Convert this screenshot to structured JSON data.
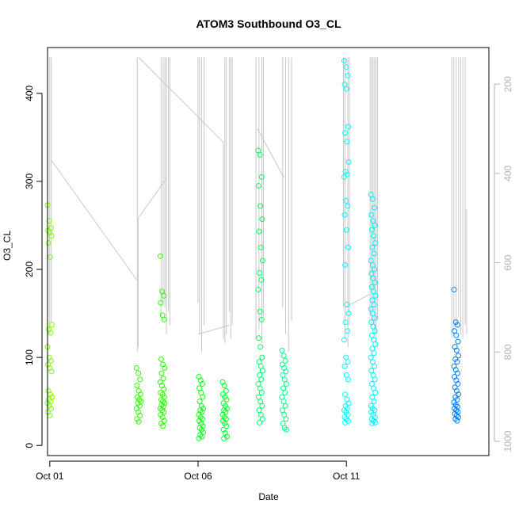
{
  "chart_data": {
    "type": "scatter",
    "title": "ATOM3 Southbound O3_CL",
    "xlabel": "Date",
    "ylabel": "O3_CL",
    "x_ticks": [
      {
        "day": 1,
        "label": "Oct 01"
      },
      {
        "day": 6,
        "label": "Oct 06"
      },
      {
        "day": 11,
        "label": "Oct 11"
      }
    ],
    "xlim": [
      "Oct 01",
      "Oct 15"
    ],
    "ylim": [
      0,
      450
    ],
    "y_ticks": [
      0,
      100,
      200,
      300,
      400
    ],
    "secondary_axis": {
      "side": "right",
      "reversed": true,
      "ylim": [
        1030,
        140
      ],
      "ticks": [
        200,
        400,
        600,
        800,
        1000
      ],
      "color": "#b3b3b3"
    },
    "grid": false,
    "legend": "none",
    "point_color_scale": "day-of-flight hue (green to cyan to blue)",
    "series": [
      {
        "day": 1.0,
        "color": "#80ff00",
        "values": [
          273,
          255,
          247,
          244,
          242,
          238,
          230,
          214,
          137,
          132,
          128,
          112,
          100,
          96,
          92,
          88,
          84,
          62,
          58,
          55,
          52,
          50,
          48,
          45,
          42,
          38,
          34
        ]
      },
      {
        "day": 4.0,
        "color": "#33ff00",
        "values": [
          88,
          82,
          75,
          68,
          62,
          58,
          55,
          52,
          50,
          48,
          45,
          42,
          38,
          34,
          30,
          27
        ]
      },
      {
        "day": 4.8,
        "color": "#2bff00",
        "values": [
          215,
          175,
          170,
          162,
          148,
          143,
          98,
          92,
          88,
          82,
          76,
          72,
          68,
          64,
          60,
          58,
          55,
          52,
          50,
          48,
          46,
          44,
          42,
          40,
          38,
          35,
          32,
          28,
          25,
          22
        ]
      },
      {
        "day": 6.1,
        "color": "#10ff1a",
        "values": [
          78,
          74,
          70,
          65,
          60,
          55,
          50,
          45,
          42,
          40,
          38,
          35,
          32,
          30,
          28,
          25,
          22,
          20,
          18,
          15,
          12,
          10,
          8
        ]
      },
      {
        "day": 6.9,
        "color": "#00ff2e",
        "values": [
          72,
          68,
          62,
          58,
          55,
          52,
          48,
          45,
          42,
          40,
          38,
          35,
          32,
          30,
          28,
          25,
          22,
          18,
          14,
          10,
          8
        ]
      },
      {
        "day": 8.1,
        "color": "#00ff66",
        "values": [
          335,
          330,
          305,
          295,
          272,
          257,
          243,
          225,
          210,
          196,
          188,
          177,
          152,
          143,
          122,
          112,
          100,
          95,
          90,
          85,
          80,
          75,
          70,
          65,
          60,
          55,
          50,
          45,
          40,
          35,
          30,
          26
        ]
      },
      {
        "day": 8.9,
        "color": "#00ff8c",
        "values": [
          108,
          102,
          96,
          92,
          88,
          84,
          80,
          75,
          70,
          65,
          60,
          55,
          50,
          45,
          40,
          35,
          30,
          25,
          20,
          18
        ]
      },
      {
        "day": 11.0,
        "color": "#00ffff",
        "values": [
          437,
          430,
          420,
          410,
          405,
          362,
          355,
          345,
          322,
          311,
          308,
          305,
          278,
          272,
          262,
          245,
          225,
          205,
          160,
          150,
          140,
          130,
          120,
          100,
          95,
          90,
          80,
          75,
          58,
          52,
          48,
          45,
          42,
          40,
          38,
          35,
          32,
          30,
          28,
          26
        ]
      },
      {
        "day": 11.9,
        "color": "#00f0ff",
        "values": [
          285,
          280,
          270,
          262,
          255,
          250,
          245,
          238,
          230,
          225,
          218,
          210,
          205,
          200,
          195,
          190,
          185,
          180,
          175,
          170,
          165,
          160,
          155,
          150,
          145,
          140,
          135,
          130,
          125,
          120,
          115,
          110,
          105,
          100,
          95,
          90,
          85,
          80,
          75,
          70,
          65,
          60,
          55,
          50,
          45,
          42,
          40,
          38,
          35,
          32,
          30,
          28,
          26,
          25
        ]
      },
      {
        "day": 14.7,
        "color": "#0080ff",
        "values": [
          177,
          140,
          137,
          130,
          125,
          118,
          112,
          108,
          102,
          98,
          95,
          90,
          86,
          82,
          78,
          74,
          70,
          66,
          62,
          58,
          55,
          52,
          49,
          46,
          44,
          42,
          40,
          38,
          36,
          34,
          32,
          30,
          28
        ]
      }
    ],
    "pressure_trace": {
      "color": "#c8c8c8",
      "axis": "secondary",
      "description_hidden": true,
      "vertical_segments": [
        {
          "day": 1.0,
          "from": 140,
          "to": 760
        },
        {
          "day": 1.05,
          "from": 140,
          "to": 735
        },
        {
          "day": 3.95,
          "from": 140,
          "to": 800
        },
        {
          "day": 3.98,
          "from": 500,
          "to": 790
        },
        {
          "day": 4.75,
          "from": 140,
          "to": 720
        },
        {
          "day": 4.82,
          "from": 140,
          "to": 690
        },
        {
          "day": 4.88,
          "from": 140,
          "to": 700
        },
        {
          "day": 4.93,
          "from": 140,
          "to": 760
        },
        {
          "day": 5.0,
          "from": 140,
          "to": 710
        },
        {
          "day": 5.05,
          "from": 140,
          "to": 740
        },
        {
          "day": 6.0,
          "from": 140,
          "to": 690
        },
        {
          "day": 6.05,
          "from": 140,
          "to": 760
        },
        {
          "day": 6.12,
          "from": 140,
          "to": 800
        },
        {
          "day": 6.2,
          "from": 140,
          "to": 740
        },
        {
          "day": 6.85,
          "from": 330,
          "to": 770
        },
        {
          "day": 6.9,
          "from": 140,
          "to": 780
        },
        {
          "day": 6.95,
          "from": 140,
          "to": 760
        },
        {
          "day": 7.05,
          "from": 140,
          "to": 710
        },
        {
          "day": 7.1,
          "from": 140,
          "to": 770
        },
        {
          "day": 7.15,
          "from": 140,
          "to": 740
        },
        {
          "day": 7.95,
          "from": 140,
          "to": 770
        },
        {
          "day": 8.05,
          "from": 140,
          "to": 750
        },
        {
          "day": 8.15,
          "from": 140,
          "to": 780
        },
        {
          "day": 8.2,
          "from": 140,
          "to": 720
        },
        {
          "day": 8.85,
          "from": 140,
          "to": 700
        },
        {
          "day": 8.95,
          "from": 140,
          "to": 760
        },
        {
          "day": 9.05,
          "from": 140,
          "to": 800
        },
        {
          "day": 9.15,
          "from": 140,
          "to": 730
        },
        {
          "day": 10.9,
          "from": 140,
          "to": 700
        },
        {
          "day": 10.95,
          "from": 140,
          "to": 770
        },
        {
          "day": 11.05,
          "from": 140,
          "to": 790
        },
        {
          "day": 11.1,
          "from": 140,
          "to": 740
        },
        {
          "day": 11.8,
          "from": 140,
          "to": 720
        },
        {
          "day": 11.85,
          "from": 140,
          "to": 740
        },
        {
          "day": 11.9,
          "from": 140,
          "to": 700
        },
        {
          "day": 11.95,
          "from": 140,
          "to": 760
        },
        {
          "day": 12.0,
          "from": 140,
          "to": 790
        },
        {
          "day": 12.05,
          "from": 140,
          "to": 730
        },
        {
          "day": 14.55,
          "from": 140,
          "to": 770
        },
        {
          "day": 14.62,
          "from": 140,
          "to": 760
        },
        {
          "day": 14.7,
          "from": 140,
          "to": 740
        },
        {
          "day": 14.78,
          "from": 140,
          "to": 720
        },
        {
          "day": 14.85,
          "from": 140,
          "to": 760
        },
        {
          "day": 14.92,
          "from": 140,
          "to": 770
        },
        {
          "day": 15.0,
          "from": 140,
          "to": 740
        },
        {
          "day": 15.05,
          "from": 480,
          "to": 760
        }
      ],
      "connectors": [
        {
          "from": [
            1.05,
            370
          ],
          "to": [
            3.95,
            640
          ]
        },
        {
          "from": [
            3.98,
            500
          ],
          "to": [
            4.95,
            410
          ]
        },
        {
          "from": [
            4.0,
            140
          ],
          "to": [
            6.85,
            330
          ]
        },
        {
          "from": [
            6.0,
            760
          ],
          "to": [
            7.05,
            740
          ]
        },
        {
          "from": [
            8.0,
            300
          ],
          "to": [
            8.9,
            410
          ]
        },
        {
          "from": [
            10.95,
            700
          ],
          "to": [
            11.8,
            670
          ]
        }
      ]
    }
  }
}
